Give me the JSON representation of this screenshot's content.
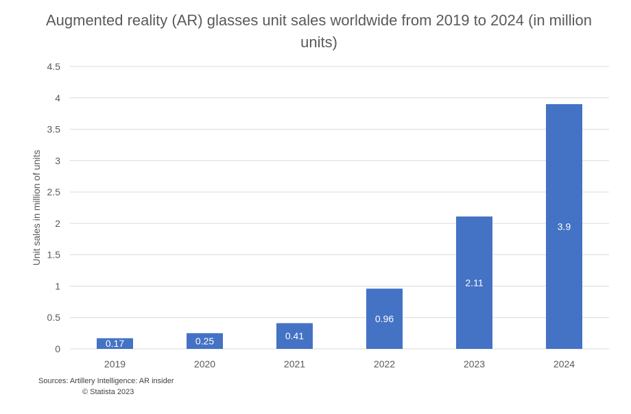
{
  "chart_data": {
    "type": "bar",
    "title": "Augmented reality (AR) glasses unit sales worldwide from 2019 to 2024 (in million units)",
    "xlabel": "",
    "ylabel": "Unit sales in million of units",
    "categories": [
      "2019",
      "2020",
      "2021",
      "2022",
      "2023",
      "2024"
    ],
    "values": [
      0.17,
      0.25,
      0.41,
      0.96,
      2.11,
      3.9
    ],
    "data_labels": [
      "0.17",
      "0.25",
      "0.41",
      "0.96",
      "2.11",
      "3.9"
    ],
    "ylim": [
      0,
      4.5
    ],
    "yticks": [
      "0",
      "0.5",
      "1",
      "1.5",
      "2",
      "2.5",
      "3",
      "3.5",
      "4",
      "4.5"
    ],
    "grid": true,
    "legend": "none",
    "bar_color": "#4472C4",
    "grid_color": "#d9d9d9",
    "label_color": "#ffffff"
  },
  "footer": {
    "source": "Sources: Artillery Intelligence: AR insider",
    "copyright": "© Statista 2023"
  }
}
